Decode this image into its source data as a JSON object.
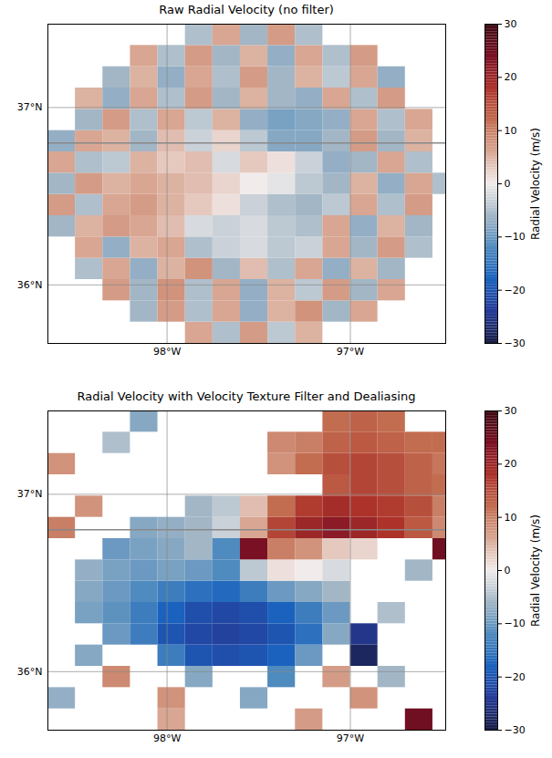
{
  "chart_data": [
    {
      "type": "heatmap",
      "title": "Raw Radial Velocity (no filter)",
      "lon_edges": [
        -98.65,
        -98.5,
        -98.35,
        -98.2,
        -98.05,
        -97.9,
        -97.75,
        -97.6,
        -97.45,
        -97.3,
        -97.15,
        -97.0,
        -96.85,
        -96.7,
        -96.55,
        -96.4
      ],
      "lat_edges": [
        35.67,
        35.79,
        35.91,
        36.03,
        36.15,
        36.27,
        36.39,
        36.51,
        36.63,
        36.75,
        36.87,
        36.99,
        37.11,
        37.23,
        37.35,
        37.47
      ],
      "values": [
        [
          null,
          null,
          null,
          null,
          null,
          6,
          -5,
          7,
          -4,
          5,
          null,
          null,
          null,
          null,
          null
        ],
        [
          null,
          null,
          null,
          -6,
          7,
          -5,
          6,
          -7,
          5,
          8,
          -6,
          6,
          null,
          null,
          null
        ],
        [
          null,
          null,
          7,
          -6,
          8,
          -5,
          6,
          -7,
          5,
          -4,
          7,
          -6,
          6,
          null,
          null
        ],
        [
          null,
          -5,
          6,
          -7,
          5,
          8,
          -6,
          4,
          -5,
          6,
          -7,
          5,
          -6,
          null,
          null
        ],
        [
          null,
          6,
          -7,
          5,
          6,
          -5,
          -3,
          -2,
          -4,
          -3,
          6,
          -6,
          7,
          -5,
          null
        ],
        [
          -6,
          5,
          7,
          6,
          4,
          -2,
          -3,
          -2,
          -4,
          -5,
          6,
          -7,
          5,
          -6,
          null
        ],
        [
          7,
          -5,
          6,
          7,
          5,
          3,
          1,
          -3,
          -5,
          -6,
          -4,
          6,
          -5,
          7,
          null
        ],
        [
          -6,
          7,
          5,
          6,
          5,
          4,
          2,
          0,
          -1,
          -4,
          -6,
          5,
          -7,
          6,
          -5
        ],
        [
          6,
          -5,
          -4,
          5,
          3,
          4,
          -2,
          3,
          1,
          -3,
          -7,
          -6,
          6,
          -5,
          null
        ],
        [
          -7,
          6,
          5,
          -6,
          4,
          -3,
          2,
          -4,
          -8,
          -8,
          -6,
          7,
          -6,
          5,
          null
        ],
        [
          null,
          -6,
          7,
          -5,
          6,
          -4,
          5,
          -7,
          -9,
          -8,
          -7,
          6,
          -5,
          6,
          null
        ],
        [
          null,
          5,
          -7,
          6,
          -5,
          7,
          -6,
          5,
          -6,
          -7,
          6,
          -5,
          7,
          null,
          null
        ],
        [
          null,
          null,
          -6,
          5,
          -7,
          6,
          -5,
          7,
          -6,
          5,
          -4,
          6,
          -7,
          null,
          null
        ],
        [
          null,
          null,
          null,
          6,
          -5,
          7,
          -6,
          5,
          -7,
          6,
          -5,
          7,
          null,
          null,
          null
        ],
        [
          null,
          null,
          null,
          null,
          null,
          -5,
          6,
          -6,
          7,
          -5,
          null,
          null,
          null,
          null,
          null
        ]
      ],
      "xlim": [
        -98.65,
        -96.48
      ],
      "ylim": [
        35.67,
        37.47
      ],
      "xticks": [
        {
          "value": -98,
          "label": "98°W"
        },
        {
          "value": -97,
          "label": "97°W"
        }
      ],
      "yticks": [
        {
          "value": 36,
          "label": "36°N"
        },
        {
          "value": 37,
          "label": "37°N"
        }
      ],
      "grid": true,
      "hlines": [
        36.8
      ],
      "colorbar": {
        "label": "Radial Velocity (m/s)",
        "range": [
          -30,
          30
        ],
        "ticks": [
          {
            "value": -30,
            "label": "−30"
          },
          {
            "value": -20,
            "label": "−20"
          },
          {
            "value": -10,
            "label": "−10"
          },
          0,
          10,
          20,
          30
        ]
      }
    },
    {
      "type": "heatmap",
      "title": "Radial Velocity with Velocity Texture Filter and Dealiasing",
      "lon_edges": [
        -98.65,
        -98.5,
        -98.35,
        -98.2,
        -98.05,
        -97.9,
        -97.75,
        -97.6,
        -97.45,
        -97.3,
        -97.15,
        -97.0,
        -96.85,
        -96.7,
        -96.55,
        -96.4
      ],
      "lat_edges": [
        35.67,
        35.79,
        35.91,
        36.03,
        36.15,
        36.27,
        36.39,
        36.51,
        36.63,
        36.75,
        36.87,
        36.99,
        37.11,
        37.23,
        37.35,
        37.47
      ],
      "values": [
        [
          null,
          null,
          null,
          null,
          6,
          null,
          null,
          null,
          null,
          7,
          null,
          null,
          null,
          25,
          null
        ],
        [
          -7,
          null,
          null,
          null,
          8,
          null,
          null,
          -8,
          null,
          null,
          null,
          8,
          null,
          null,
          null
        ],
        [
          null,
          null,
          9,
          null,
          null,
          -8,
          null,
          null,
          -12,
          null,
          7,
          null,
          -6,
          null,
          null
        ],
        [
          null,
          -8,
          null,
          null,
          -14,
          -20,
          -21,
          -20,
          -18,
          -10,
          null,
          -28,
          null,
          null,
          null
        ],
        [
          null,
          null,
          -10,
          -14,
          -20,
          -22,
          -23,
          -22,
          -20,
          -16,
          -8,
          -25,
          null,
          null,
          null
        ],
        [
          null,
          -9,
          -11,
          -14,
          -18,
          -21,
          -22,
          -21,
          -18,
          -14,
          -10,
          null,
          -5,
          null,
          null
        ],
        [
          null,
          -8,
          -10,
          -12,
          -14,
          -16,
          -17,
          -14,
          -10,
          -8,
          -6,
          null,
          null,
          null,
          null
        ],
        [
          null,
          -7,
          -9,
          -10,
          -9,
          -10,
          -12,
          -4,
          1,
          0,
          -2,
          null,
          null,
          -6,
          null
        ],
        [
          null,
          null,
          -10,
          -9,
          -8,
          -6,
          -12,
          24,
          10,
          8,
          3,
          2,
          null,
          null,
          25
        ],
        [
          10,
          null,
          null,
          -8,
          -7,
          -6,
          -3,
          6,
          16,
          20,
          22,
          20,
          18,
          14,
          9
        ],
        [
          null,
          8,
          null,
          null,
          null,
          -6,
          -4,
          4,
          12,
          17,
          19,
          18,
          17,
          15,
          10
        ],
        [
          null,
          null,
          null,
          null,
          null,
          null,
          null,
          null,
          null,
          null,
          14,
          16,
          15,
          13,
          12
        ],
        [
          8,
          null,
          null,
          null,
          null,
          null,
          null,
          null,
          8,
          12,
          15,
          16,
          15,
          13,
          11
        ],
        [
          null,
          null,
          -5,
          null,
          null,
          null,
          null,
          null,
          9,
          10,
          13,
          14,
          13,
          12,
          12
        ],
        [
          null,
          null,
          null,
          -8,
          null,
          null,
          null,
          null,
          null,
          null,
          12,
          13,
          12,
          null,
          null
        ]
      ],
      "xlim": [
        -98.65,
        -96.48
      ],
      "ylim": [
        35.67,
        37.47
      ],
      "xticks": [
        {
          "value": -98,
          "label": "98°W"
        },
        {
          "value": -97,
          "label": "97°W"
        }
      ],
      "yticks": [
        {
          "value": 36,
          "label": "36°N"
        },
        {
          "value": 37,
          "label": "37°N"
        }
      ],
      "grid": true,
      "hlines": [
        36.8
      ],
      "colorbar": {
        "label": "Radial Velocity (m/s)",
        "range": [
          -30,
          30
        ],
        "ticks": [
          {
            "value": -30,
            "label": "−30"
          },
          {
            "value": -20,
            "label": "−20"
          },
          {
            "value": -10,
            "label": "−10"
          },
          0,
          10,
          20,
          30
        ]
      }
    }
  ]
}
